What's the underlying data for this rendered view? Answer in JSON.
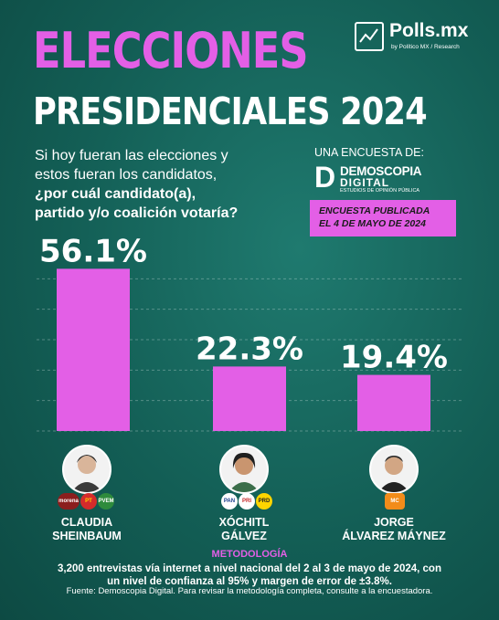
{
  "header": {
    "title_line1": "ELECCIONES",
    "title_line2": "PRESIDENCIALES 2024"
  },
  "brand": {
    "name": "Polls.mx",
    "sub": "by Político MX / Research"
  },
  "question": {
    "line1": "Si hoy fueran las elecciones y",
    "line2": "estos fueran los candidatos,",
    "line3": "¿por cuál candidato(a),",
    "line4": "partido y/o coalición votaría?"
  },
  "survey": {
    "label": "UNA ENCUESTA DE:",
    "pollster_mark": "D",
    "pollster_line1": "DEMOSCOPIA",
    "pollster_line2": "DIGITAL",
    "pollster_line3": "ESTUDIOS DE OPINIÓN PÚBLICA",
    "published_line1": "ENCUESTA PUBLICADA",
    "published_line2": "EL 4 DE MAYO DE 2024"
  },
  "chart_data": {
    "type": "bar",
    "categories": [
      "CLAUDIA SHEINBAUM",
      "XÓCHITL GÁLVEZ",
      "JORGE ÁLVAREZ MÁYNEZ"
    ],
    "values": [
      56.1,
      22.3,
      19.4
    ],
    "value_labels": [
      "56.1%",
      "22.3%",
      "19.4%"
    ],
    "bar_color": "#e35fe6",
    "ylim": [
      0,
      60
    ]
  },
  "candidates": [
    {
      "name_line1": "CLAUDIA",
      "name_line2": "SHEINBAUM",
      "parties": [
        "morena",
        "PT",
        "PVEM"
      ]
    },
    {
      "name_line1": "XÓCHITL",
      "name_line2": "GÁLVEZ",
      "parties": [
        "PAN",
        "PRI",
        "PRD"
      ]
    },
    {
      "name_line1": "JORGE",
      "name_line2": "ÁLVAREZ MÁYNEZ",
      "parties": [
        "MC"
      ]
    }
  ],
  "methodology": {
    "title": "METODOLOGÍA",
    "line1": "3,200 entrevistas vía internet a nivel nacional del 2 al 3 de mayo de 2024, con",
    "line2": "un nivel de confianza al 95% y margen de error de ±3.8%.",
    "source": "Fuente:  Demoscopia Digital. Para revisar la metodología completa, consulte a la encuestadora."
  },
  "colors": {
    "background": "#135e55",
    "accent": "#e35fe6",
    "text": "#ffffff"
  }
}
